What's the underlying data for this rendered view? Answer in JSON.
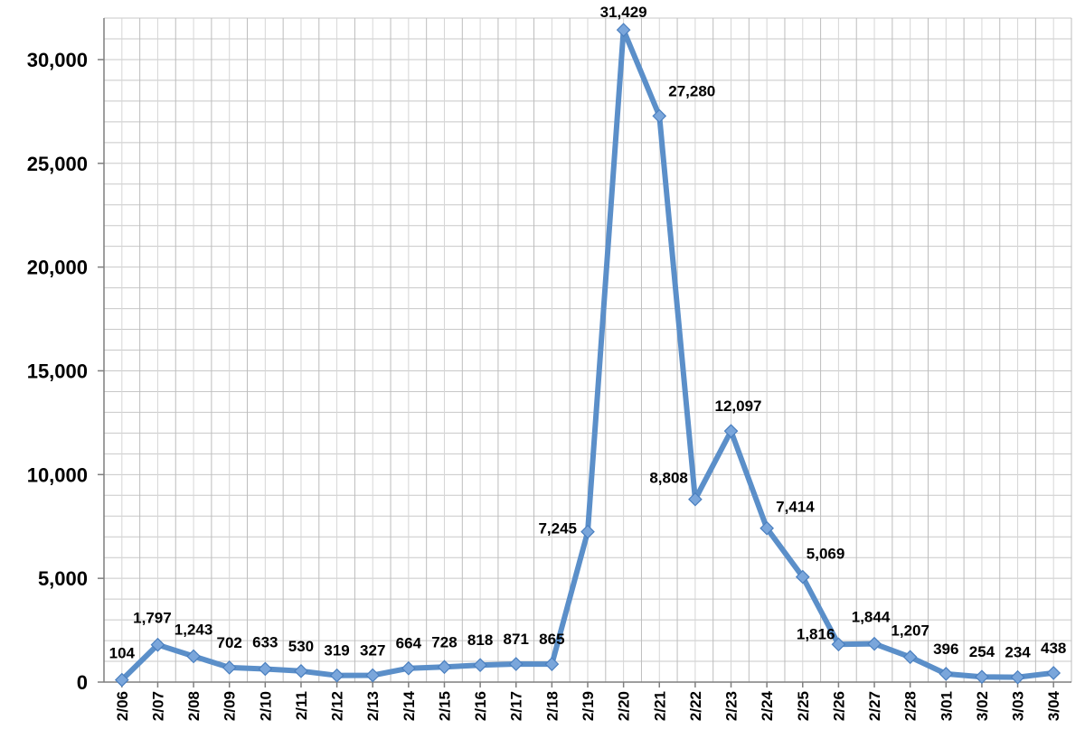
{
  "chart_data": {
    "type": "line",
    "title": "",
    "xlabel": "",
    "ylabel": "",
    "ylim": [
      0,
      32000
    ],
    "yticks": [
      0,
      5000,
      10000,
      15000,
      20000,
      25000,
      30000
    ],
    "ytick_labels": [
      "0",
      "5,000",
      "10,000",
      "15,000",
      "20,000",
      "25,000",
      "30,000"
    ],
    "grid": true,
    "legend": "none",
    "line_color": "#5b8fc9",
    "marker": "diamond",
    "categories": [
      "2/06",
      "2/07",
      "2/08",
      "2/09",
      "2/10",
      "2/11",
      "2/12",
      "2/13",
      "2/14",
      "2/15",
      "2/16",
      "2/17",
      "2/18",
      "2/19",
      "2/20",
      "2/21",
      "2/22",
      "2/23",
      "2/24",
      "2/25",
      "2/26",
      "2/27",
      "2/28",
      "3/01",
      "3/02",
      "3/03",
      "3/04"
    ],
    "values": [
      104,
      1797,
      1243,
      702,
      633,
      530,
      319,
      327,
      664,
      728,
      818,
      871,
      865,
      7245,
      31429,
      27280,
      8808,
      12097,
      7414,
      5069,
      1816,
      1844,
      1207,
      396,
      254,
      234,
      438
    ],
    "data_labels": [
      "104",
      "1,797",
      "1,243",
      "702",
      "633",
      "530",
      "319",
      "327",
      "664",
      "728",
      "818",
      "871",
      "865",
      "7,245",
      "31,429",
      "27,280",
      "8,808",
      "12,097",
      "7,414",
      "5,069",
      "1,816",
      "1,844",
      "1,207",
      "396",
      "254",
      "234",
      "438"
    ]
  }
}
